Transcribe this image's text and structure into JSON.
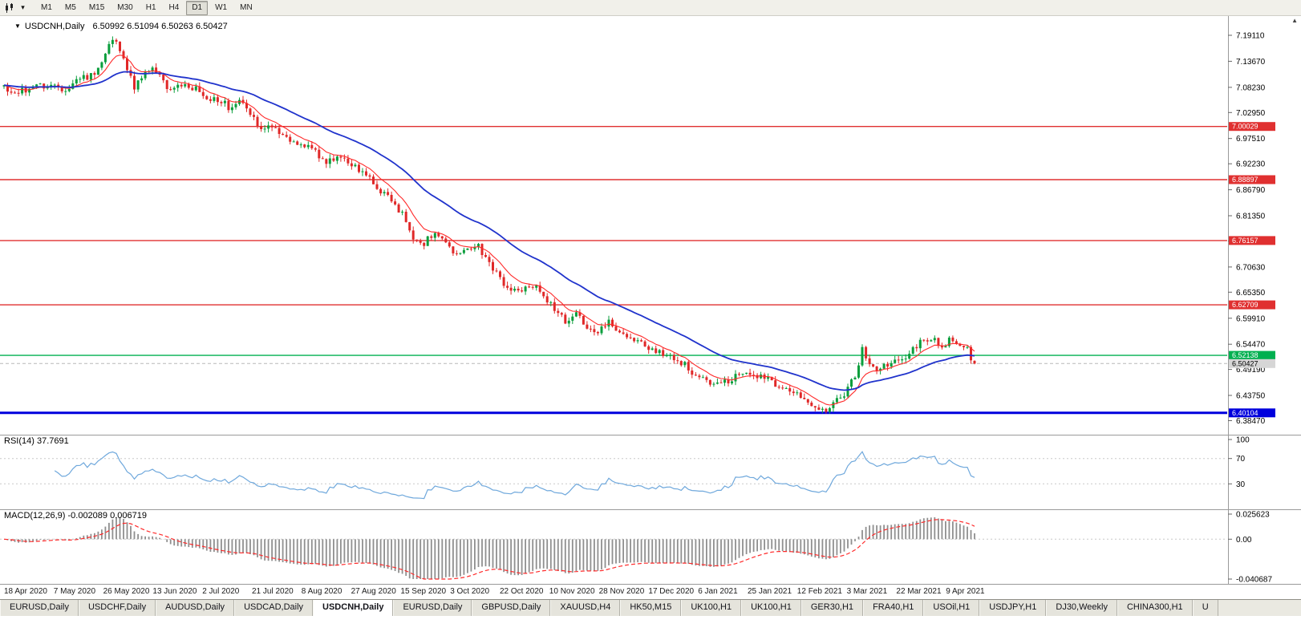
{
  "icons": {
    "dropdown_glyph": "▾",
    "title_menu_glyph": "▼",
    "scroll_up_glyph": "▲"
  },
  "toolbar": {
    "timeframes": [
      {
        "label": "M1",
        "active": false
      },
      {
        "label": "M5",
        "active": false
      },
      {
        "label": "M15",
        "active": false
      },
      {
        "label": "M30",
        "active": false
      },
      {
        "label": "H1",
        "active": false
      },
      {
        "label": "H4",
        "active": false
      },
      {
        "label": "D1",
        "active": true
      },
      {
        "label": "W1",
        "active": false
      },
      {
        "label": "MN",
        "active": false
      }
    ]
  },
  "main_pane": {
    "title": "USDCNH,Daily",
    "ohlc_text": "6.50992 6.51094 6.50263 6.50427",
    "y_labels": [
      "7.19110",
      "7.13670",
      "7.08230",
      "7.02950",
      "6.97510",
      "6.92230",
      "6.86790",
      "6.81350",
      "6.76070",
      "6.70630",
      "6.65350",
      "6.59910",
      "6.54470",
      "6.49190",
      "6.43750",
      "6.38470"
    ],
    "price_lines": [
      {
        "label": "7.00029",
        "value": 7.00029,
        "color": "#e03030",
        "width": 1.4,
        "box_color": "#e03030",
        "text_color": "#ffffff"
      },
      {
        "label": "6.88897",
        "value": 6.88897,
        "color": "#e03030",
        "width": 1.4,
        "box_color": "#e03030",
        "text_color": "#ffffff"
      },
      {
        "label": "6.76157",
        "value": 6.76157,
        "color": "#e03030",
        "width": 1.4,
        "box_color": "#e03030",
        "text_color": "#ffffff"
      },
      {
        "label": "6.62709",
        "value": 6.62709,
        "color": "#e03030",
        "width": 1.4,
        "box_color": "#e03030",
        "text_color": "#ffffff"
      },
      {
        "label": "6.52138",
        "value": 6.52138,
        "color": "#00b050",
        "width": 1.4,
        "box_color": "#00b050",
        "text_color": "#ffffff"
      },
      {
        "label": "6.50427",
        "value": 6.50427,
        "color": "#b8b8b8",
        "width": 1,
        "dash": "4 3",
        "box_color": "#d6d6d6",
        "text_color": "#000000",
        "role": "bid"
      },
      {
        "label": "6.40104",
        "value": 6.40104,
        "color": "#0000dd",
        "width": 3,
        "box_color": "#0000dd",
        "text_color": "#ffffff"
      }
    ]
  },
  "rsi_pane": {
    "title": "RSI(14)",
    "value": "37.7691",
    "axis_labels": [
      "100",
      "70",
      "30"
    ],
    "level_lines": [
      70,
      30
    ],
    "line_color": "#6fa8dc"
  },
  "macd_pane": {
    "title": "MACD(12,26,9)",
    "values": "-0.002089 0.006719",
    "axis_labels": [
      "0.025623",
      "0.00",
      "-0.040687"
    ],
    "bar_color": "#8f8f8f",
    "signal_color": "#ff2a2a"
  },
  "x_axis": {
    "labels": [
      "18 Apr 2020",
      "7 May 2020",
      "26 May 2020",
      "13 Jun 2020",
      "2 Jul 2020",
      "21 Jul 2020",
      "8 Aug 2020",
      "27 Aug 2020",
      "15 Sep 2020",
      "3 Oct 2020",
      "22 Oct 2020",
      "10 Nov 2020",
      "28 Nov 2020",
      "17 Dec 2020",
      "6 Jan 2021",
      "25 Jan 2021",
      "12 Feb 2021",
      "3 Mar 2021",
      "22 Mar 2021",
      "9 Apr 2021"
    ]
  },
  "tab_bar": {
    "tabs": [
      {
        "label": "EURUSD,Daily",
        "active": false
      },
      {
        "label": "USDCHF,Daily",
        "active": false
      },
      {
        "label": "AUDUSD,Daily",
        "active": false
      },
      {
        "label": "USDCAD,Daily",
        "active": false
      },
      {
        "label": "USDCNH,Daily",
        "active": true
      },
      {
        "label": "EURUSD,Daily",
        "active": false
      },
      {
        "label": "GBPUSD,Daily",
        "active": false
      },
      {
        "label": "XAUUSD,H4",
        "active": false
      },
      {
        "label": "HK50,M15",
        "active": false
      },
      {
        "label": "UK100,H1",
        "active": false
      },
      {
        "label": "UK100,H1",
        "active": false
      },
      {
        "label": "GER30,H1",
        "active": false
      },
      {
        "label": "FRA40,H1",
        "active": false
      },
      {
        "label": "USOil,H1",
        "active": false
      },
      {
        "label": "USDJPY,H1",
        "active": false
      },
      {
        "label": "DJ30,Weekly",
        "active": false
      },
      {
        "label": "CHINA300,H1",
        "active": false
      },
      {
        "label": "U",
        "active": false
      }
    ]
  },
  "chart_data": {
    "type": "candlestick",
    "symbol": "USDCNH",
    "timeframe": "Daily",
    "ylim": [
      6.357,
      7.218
    ],
    "candle_count": 269,
    "last_ohlc": {
      "open": 6.50992,
      "high": 6.51094,
      "low": 6.50263,
      "close": 6.50427
    },
    "up_color": "#0a9e3c",
    "down_color": "#e02828",
    "close_path": [
      [
        0,
        7.08
      ],
      [
        3,
        7.068
      ],
      [
        6,
        7.076
      ],
      [
        9,
        7.095
      ],
      [
        11,
        7.085
      ],
      [
        14,
        7.088
      ],
      [
        17,
        7.078
      ],
      [
        20,
        7.095
      ],
      [
        23,
        7.105
      ],
      [
        26,
        7.118
      ],
      [
        28,
        7.148
      ],
      [
        30,
        7.186
      ],
      [
        32,
        7.158
      ],
      [
        34,
        7.12
      ],
      [
        36,
        7.085
      ],
      [
        39,
        7.115
      ],
      [
        41,
        7.128
      ],
      [
        44,
        7.09
      ],
      [
        47,
        7.075
      ],
      [
        50,
        7.09
      ],
      [
        53,
        7.078
      ],
      [
        56,
        7.062
      ],
      [
        59,
        7.055
      ],
      [
        62,
        7.042
      ],
      [
        65,
        7.06
      ],
      [
        68,
        7.022
      ],
      [
        71,
        6.998
      ],
      [
        74,
        7.005
      ],
      [
        77,
        6.985
      ],
      [
        80,
        6.972
      ],
      [
        83,
        6.958
      ],
      [
        86,
        6.945
      ],
      [
        89,
        6.925
      ],
      [
        92,
        6.935
      ],
      [
        95,
        6.922
      ],
      [
        98,
        6.908
      ],
      [
        101,
        6.888
      ],
      [
        104,
        6.862
      ],
      [
        107,
        6.845
      ],
      [
        110,
        6.818
      ],
      [
        113,
        6.765
      ],
      [
        116,
        6.752
      ],
      [
        119,
        6.785
      ],
      [
        122,
        6.758
      ],
      [
        125,
        6.735
      ],
      [
        128,
        6.742
      ],
      [
        131,
        6.748
      ],
      [
        134,
        6.715
      ],
      [
        137,
        6.682
      ],
      [
        140,
        6.655
      ],
      [
        143,
        6.662
      ],
      [
        146,
        6.67
      ],
      [
        149,
        6.645
      ],
      [
        152,
        6.618
      ],
      [
        155,
        6.594
      ],
      [
        158,
        6.606
      ],
      [
        161,
        6.582
      ],
      [
        164,
        6.572
      ],
      [
        167,
        6.588
      ],
      [
        170,
        6.564
      ],
      [
        173,
        6.552
      ],
      [
        176,
        6.545
      ],
      [
        179,
        6.535
      ],
      [
        182,
        6.525
      ],
      [
        185,
        6.515
      ],
      [
        188,
        6.502
      ],
      [
        191,
        6.482
      ],
      [
        194,
        6.472
      ],
      [
        197,
        6.458
      ],
      [
        200,
        6.468
      ],
      [
        203,
        6.478
      ],
      [
        206,
        6.484
      ],
      [
        209,
        6.474
      ],
      [
        212,
        6.466
      ],
      [
        215,
        6.458
      ],
      [
        218,
        6.45
      ],
      [
        221,
        6.432
      ],
      [
        223,
        6.412
      ],
      [
        226,
        6.403
      ],
      [
        229,
        6.425
      ],
      [
        232,
        6.442
      ],
      [
        235,
        6.48
      ],
      [
        237,
        6.535
      ],
      [
        239,
        6.498
      ],
      [
        241,
        6.488
      ],
      [
        244,
        6.5
      ],
      [
        247,
        6.51
      ],
      [
        250,
        6.528
      ],
      [
        253,
        6.548
      ],
      [
        255,
        6.558
      ],
      [
        257,
        6.552
      ],
      [
        259,
        6.545
      ],
      [
        261,
        6.552
      ],
      [
        263,
        6.547
      ],
      [
        265,
        6.541
      ],
      [
        266,
        6.533
      ],
      [
        267,
        6.517
      ],
      [
        268,
        6.505
      ]
    ],
    "overlays": [
      {
        "name": "ma-fast",
        "type": "EMA",
        "period": 9,
        "color": "#ff2a2a"
      },
      {
        "name": "ma-slow",
        "type": "EMA",
        "period": 34,
        "color": "#2033cc"
      }
    ],
    "horizontal_levels": [
      7.00029,
      6.88897,
      6.76157,
      6.62709,
      6.52138,
      6.40104
    ],
    "bid_price": 6.50427,
    "indicators": [
      {
        "type": "RSI",
        "period": 14,
        "current": 37.7691,
        "range": [
          0,
          100
        ],
        "levels": [
          30,
          70
        ]
      },
      {
        "type": "MACD",
        "fast": 12,
        "slow": 26,
        "signal": 9,
        "current_macd": -0.002089,
        "current_signal": 0.006719,
        "range": [
          -0.040687,
          0.025623
        ]
      }
    ]
  }
}
